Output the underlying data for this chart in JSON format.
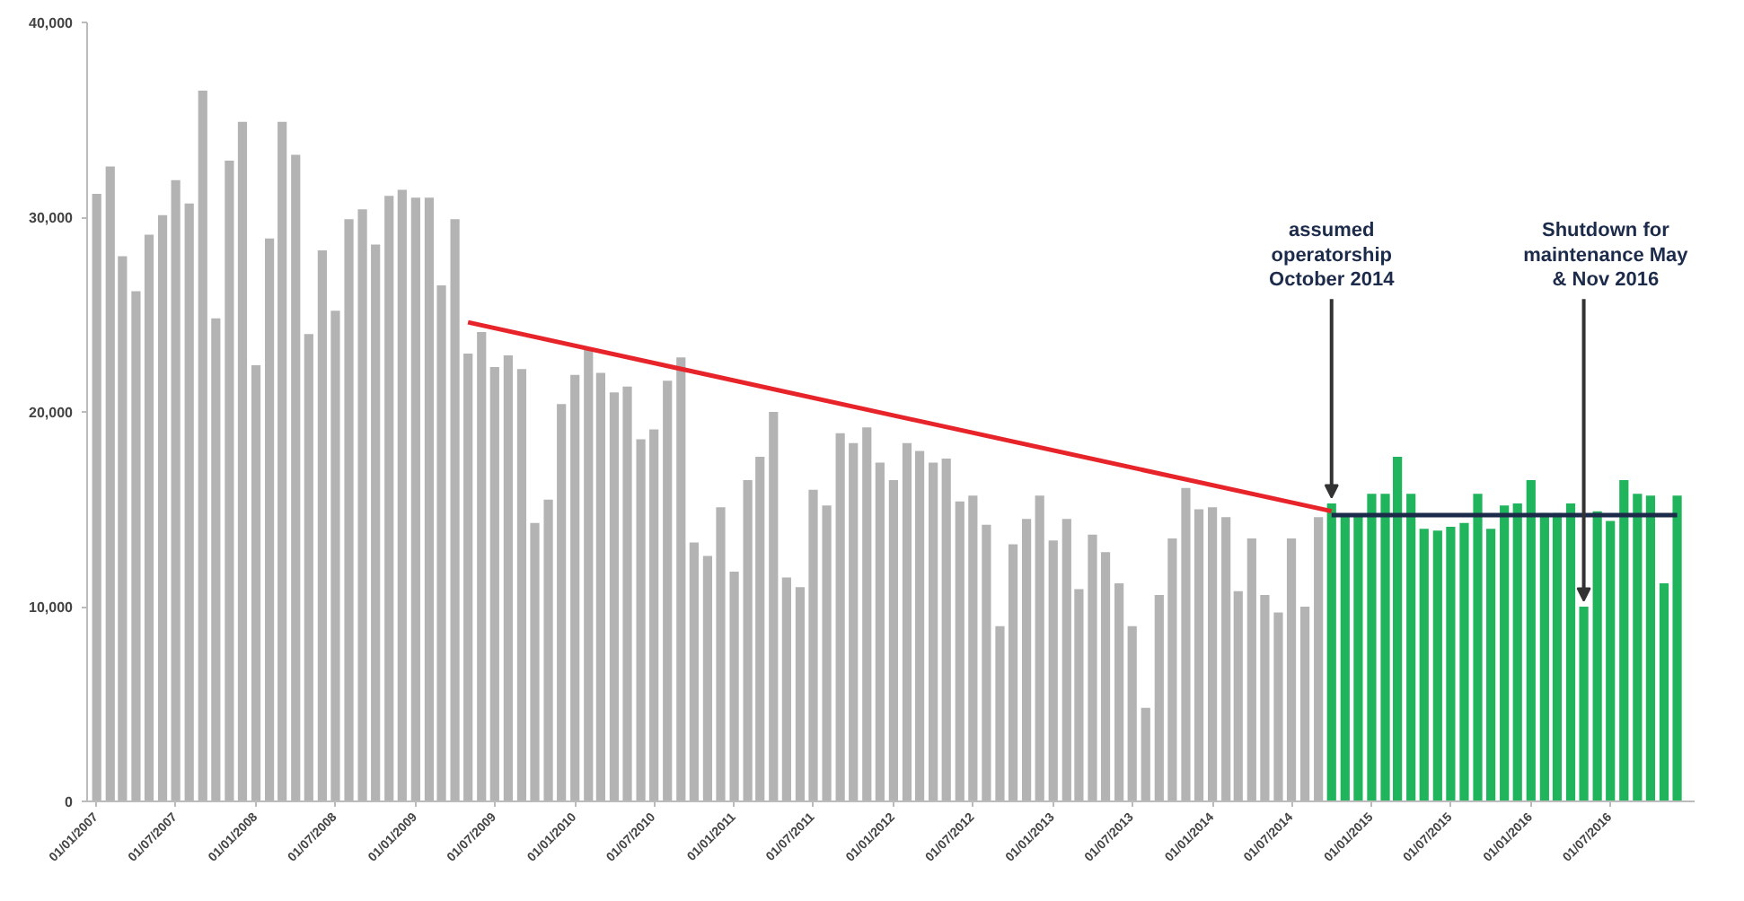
{
  "chart_data": {
    "type": "bar",
    "x": [
      "2007-01",
      "2007-02",
      "2007-03",
      "2007-04",
      "2007-05",
      "2007-06",
      "2007-07",
      "2007-08",
      "2007-09",
      "2007-10",
      "2007-11",
      "2007-12",
      "2008-01",
      "2008-02",
      "2008-03",
      "2008-04",
      "2008-05",
      "2008-06",
      "2008-07",
      "2008-08",
      "2008-09",
      "2008-10",
      "2008-11",
      "2008-12",
      "2009-01",
      "2009-02",
      "2009-03",
      "2009-04",
      "2009-05",
      "2009-06",
      "2009-07",
      "2009-08",
      "2009-09",
      "2009-10",
      "2009-11",
      "2009-12",
      "2010-01",
      "2010-02",
      "2010-03",
      "2010-04",
      "2010-05",
      "2010-06",
      "2010-07",
      "2010-08",
      "2010-09",
      "2010-10",
      "2010-11",
      "2010-12",
      "2011-01",
      "2011-02",
      "2011-03",
      "2011-04",
      "2011-05",
      "2011-06",
      "2011-07",
      "2011-08",
      "2011-09",
      "2011-10",
      "2011-11",
      "2011-12",
      "2012-01",
      "2012-02",
      "2012-03",
      "2012-04",
      "2012-05",
      "2012-06",
      "2012-07",
      "2012-08",
      "2012-09",
      "2012-10",
      "2012-11",
      "2012-12",
      "2013-01",
      "2013-02",
      "2013-03",
      "2013-04",
      "2013-05",
      "2013-06",
      "2013-07",
      "2013-08",
      "2013-09",
      "2013-10",
      "2013-11",
      "2013-12",
      "2014-01",
      "2014-02",
      "2014-03",
      "2014-04",
      "2014-05",
      "2014-06",
      "2014-07",
      "2014-08",
      "2014-09",
      "2014-10",
      "2014-11",
      "2014-12",
      "2015-01",
      "2015-02",
      "2015-03",
      "2015-04",
      "2015-05",
      "2015-06",
      "2015-07",
      "2015-08",
      "2015-09",
      "2015-10",
      "2015-11",
      "2015-12",
      "2016-01",
      "2016-02",
      "2016-03",
      "2016-04",
      "2016-05",
      "2016-06",
      "2016-07",
      "2016-08",
      "2016-09",
      "2016-10",
      "2016-11",
      "2016-12"
    ],
    "series": [
      {
        "values": [
          31200,
          32600,
          28000,
          26200,
          29100,
          30100,
          31900,
          30700,
          36500,
          24800,
          32900,
          34900,
          22400,
          28900,
          34900,
          33200,
          24000,
          28300,
          25200,
          29900,
          30400,
          28600,
          31100,
          31400,
          31000,
          31000,
          26500,
          29900,
          23000,
          24100,
          22300,
          22900,
          22200,
          14300,
          15500,
          20400,
          21900,
          23200,
          22000,
          21000,
          21300,
          18600,
          19100,
          21600,
          22800,
          13300,
          12600,
          15100,
          11800,
          16500,
          17700,
          20000,
          11500,
          11000,
          16000,
          15200,
          18900,
          18400,
          19200,
          17400,
          16500,
          18400,
          18000,
          17400,
          17600,
          15400,
          15700,
          14200,
          9000,
          13200,
          14500,
          15700,
          13400,
          14500,
          10900,
          13700,
          12800,
          11200,
          9000,
          4800,
          10600,
          13500,
          16100,
          15000,
          15100,
          14600,
          10800,
          13500,
          10600,
          9700,
          13500,
          10000,
          14600,
          15300,
          14700,
          14700,
          15800,
          15800,
          17700,
          15800,
          14000,
          13900,
          14100,
          14300,
          15800,
          14000,
          15200,
          15300,
          16500,
          14800,
          14800,
          15300,
          10000,
          14900,
          14400,
          16500,
          15800,
          15700,
          11200,
          15700
        ],
        "colors": [
          "#b3b3b3",
          "#b3b3b3",
          "#b3b3b3",
          "#b3b3b3",
          "#b3b3b3",
          "#b3b3b3",
          "#b3b3b3",
          "#b3b3b3",
          "#b3b3b3",
          "#b3b3b3",
          "#b3b3b3",
          "#b3b3b3",
          "#b3b3b3",
          "#b3b3b3",
          "#b3b3b3",
          "#b3b3b3",
          "#b3b3b3",
          "#b3b3b3",
          "#b3b3b3",
          "#b3b3b3",
          "#b3b3b3",
          "#b3b3b3",
          "#b3b3b3",
          "#b3b3b3",
          "#b3b3b3",
          "#b3b3b3",
          "#b3b3b3",
          "#b3b3b3",
          "#b3b3b3",
          "#b3b3b3",
          "#b3b3b3",
          "#b3b3b3",
          "#b3b3b3",
          "#b3b3b3",
          "#b3b3b3",
          "#b3b3b3",
          "#b3b3b3",
          "#b3b3b3",
          "#b3b3b3",
          "#b3b3b3",
          "#b3b3b3",
          "#b3b3b3",
          "#b3b3b3",
          "#b3b3b3",
          "#b3b3b3",
          "#b3b3b3",
          "#b3b3b3",
          "#b3b3b3",
          "#b3b3b3",
          "#b3b3b3",
          "#b3b3b3",
          "#b3b3b3",
          "#b3b3b3",
          "#b3b3b3",
          "#b3b3b3",
          "#b3b3b3",
          "#b3b3b3",
          "#b3b3b3",
          "#b3b3b3",
          "#b3b3b3",
          "#b3b3b3",
          "#b3b3b3",
          "#b3b3b3",
          "#b3b3b3",
          "#b3b3b3",
          "#b3b3b3",
          "#b3b3b3",
          "#b3b3b3",
          "#b3b3b3",
          "#b3b3b3",
          "#b3b3b3",
          "#b3b3b3",
          "#b3b3b3",
          "#b3b3b3",
          "#b3b3b3",
          "#b3b3b3",
          "#b3b3b3",
          "#b3b3b3",
          "#b3b3b3",
          "#b3b3b3",
          "#b3b3b3",
          "#b3b3b3",
          "#b3b3b3",
          "#b3b3b3",
          "#b3b3b3",
          "#b3b3b3",
          "#b3b3b3",
          "#b3b3b3",
          "#b3b3b3",
          "#b3b3b3",
          "#b3b3b3",
          "#b3b3b3",
          "#b3b3b3",
          "#20b55c",
          "#20b55c",
          "#20b55c",
          "#20b55c",
          "#20b55c",
          "#20b55c",
          "#20b55c",
          "#20b55c",
          "#20b55c",
          "#20b55c",
          "#20b55c",
          "#20b55c",
          "#20b55c",
          "#20b55c",
          "#20b55c",
          "#20b55c",
          "#20b55c",
          "#20b55c",
          "#20b55c",
          "#20b55c",
          "#20b55c",
          "#20b55c",
          "#20b55c",
          "#20b55c",
          "#20b55c",
          "#20b55c",
          "#20b55c"
        ]
      },
      {
        "type": "line",
        "x": [
          "2009-05",
          "2014-10"
        ],
        "values": [
          24600,
          14900
        ],
        "color": "#e8242b"
      },
      {
        "type": "line",
        "x": [
          "2014-10",
          "2016-12"
        ],
        "values": [
          14700,
          14700
        ],
        "color": "#1c2b4a"
      }
    ],
    "xlim": [
      "2006-12-10",
      "2017-01-10"
    ],
    "xticks": [
      {
        "value": "2007-01",
        "label": "01/01/2007"
      },
      {
        "value": "2007-07",
        "label": "01/07/2007"
      },
      {
        "value": "2008-01",
        "label": "01/01/2008"
      },
      {
        "value": "2008-07",
        "label": "01/07/2008"
      },
      {
        "value": "2009-01",
        "label": "01/01/2009"
      },
      {
        "value": "2009-07",
        "label": "01/07/2009"
      },
      {
        "value": "2010-01",
        "label": "01/01/2010"
      },
      {
        "value": "2010-07",
        "label": "01/07/2010"
      },
      {
        "value": "2011-01",
        "label": "01/01/2011"
      },
      {
        "value": "2011-07",
        "label": "01/07/2011"
      },
      {
        "value": "2012-01",
        "label": "01/01/2012"
      },
      {
        "value": "2012-07",
        "label": "01/07/2012"
      },
      {
        "value": "2013-01",
        "label": "01/01/2013"
      },
      {
        "value": "2013-07",
        "label": "01/07/2013"
      },
      {
        "value": "2014-01",
        "label": "01/01/2014"
      },
      {
        "value": "2014-07",
        "label": "01/07/2014"
      },
      {
        "value": "2015-01",
        "label": "01/01/2015"
      },
      {
        "value": "2015-07",
        "label": "01/07/2015"
      },
      {
        "value": "2016-01",
        "label": "01/01/2016"
      },
      {
        "value": "2016-07",
        "label": "01/07/2016"
      }
    ],
    "ylim": [
      0,
      40000
    ],
    "yticks": [
      0,
      {
        "value": 10000,
        "label": "10,000"
      },
      {
        "value": 20000,
        "label": "20,000"
      },
      {
        "value": 30000,
        "label": "30,000"
      },
      {
        "value": 40000,
        "label": "40,000"
      }
    ],
    "annotations": [
      {
        "text": "assumed\noperatorship\nOctober 2014",
        "x": "2014-10",
        "y": 15300
      },
      {
        "text": "Shutdown for\nmaintenance May\n& Nov 2016",
        "x": "2016-05",
        "y": 10000
      }
    ],
    "grid": false
  }
}
